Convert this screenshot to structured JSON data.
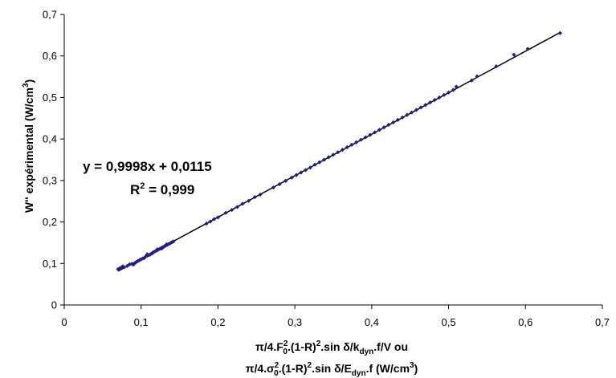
{
  "chart_data": {
    "type": "scatter",
    "xlabel_line1": {
      "pre": "π/4.F",
      "sup1": "2",
      "sub1": "0",
      "mid": ".(1-R)",
      "sup2": "2",
      "post": ".sin δ/k",
      "sub2": "dyn",
      "tail": ".f/V ou"
    },
    "xlabel_line2": {
      "pre": "π/4.σ",
      "sup1": "2",
      "sub1": "0",
      "mid": ".(1-R)",
      "sup2": "2",
      "post": ".sin δ/E",
      "sub2": "dyn",
      "tail": ".f (W/cm",
      "sup3": "3",
      "end": ")"
    },
    "ylabel": {
      "pre": "W'' expérimental (W/cm",
      "sup": "3",
      "post": ")"
    },
    "equation": "y = 0,9998x + 0,0115",
    "r2": {
      "pre": "R",
      "sup": "2",
      "post": " = 0,999"
    },
    "xlim": [
      0,
      0.7
    ],
    "ylim": [
      0,
      0.7
    ],
    "x_ticks": [
      "0",
      "0,1",
      "0,2",
      "0,3",
      "0,4",
      "0,5",
      "0,6",
      "0,7"
    ],
    "y_ticks": [
      "0",
      "0,1",
      "0,2",
      "0,3",
      "0,4",
      "0,5",
      "0,6",
      "0,7"
    ],
    "trendline": {
      "slope": 0.9998,
      "intercept": 0.0115,
      "x_range": [
        0.07,
        0.645
      ]
    },
    "marker_color": "#1f1f8c",
    "line_color": "#000000",
    "points": [
      [
        0.07,
        0.086
      ],
      [
        0.072,
        0.088
      ],
      [
        0.074,
        0.09
      ],
      [
        0.076,
        0.093
      ],
      [
        0.078,
        0.091
      ],
      [
        0.082,
        0.094
      ],
      [
        0.085,
        0.098
      ],
      [
        0.088,
        0.099
      ],
      [
        0.09,
        0.097
      ],
      [
        0.092,
        0.101
      ],
      [
        0.094,
        0.104
      ],
      [
        0.096,
        0.106
      ],
      [
        0.098,
        0.108
      ],
      [
        0.1,
        0.11
      ],
      [
        0.102,
        0.112
      ],
      [
        0.104,
        0.113
      ],
      [
        0.106,
        0.117
      ],
      [
        0.108,
        0.119
      ],
      [
        0.11,
        0.12
      ],
      [
        0.112,
        0.122
      ],
      [
        0.114,
        0.124
      ],
      [
        0.116,
        0.127
      ],
      [
        0.118,
        0.129
      ],
      [
        0.12,
        0.131
      ],
      [
        0.122,
        0.133
      ],
      [
        0.124,
        0.135
      ],
      [
        0.126,
        0.137
      ],
      [
        0.128,
        0.139
      ],
      [
        0.13,
        0.141
      ],
      [
        0.132,
        0.143
      ],
      [
        0.134,
        0.145
      ],
      [
        0.136,
        0.147
      ],
      [
        0.138,
        0.149
      ],
      [
        0.14,
        0.151
      ],
      [
        0.142,
        0.153
      ],
      [
        0.115,
        0.126
      ],
      [
        0.121,
        0.134
      ],
      [
        0.127,
        0.136
      ],
      [
        0.133,
        0.146
      ],
      [
        0.108,
        0.122
      ],
      [
        0.185,
        0.196
      ],
      [
        0.19,
        0.201
      ],
      [
        0.195,
        0.207
      ],
      [
        0.2,
        0.211
      ],
      [
        0.21,
        0.222
      ],
      [
        0.218,
        0.229
      ],
      [
        0.225,
        0.236
      ],
      [
        0.232,
        0.244
      ],
      [
        0.24,
        0.251
      ],
      [
        0.248,
        0.26
      ],
      [
        0.255,
        0.266
      ],
      [
        0.272,
        0.283
      ],
      [
        0.28,
        0.291
      ],
      [
        0.288,
        0.299
      ],
      [
        0.296,
        0.307
      ],
      [
        0.302,
        0.313
      ],
      [
        0.308,
        0.319
      ],
      [
        0.314,
        0.325
      ],
      [
        0.32,
        0.331
      ],
      [
        0.326,
        0.338
      ],
      [
        0.332,
        0.344
      ],
      [
        0.338,
        0.35
      ],
      [
        0.344,
        0.356
      ],
      [
        0.35,
        0.362
      ],
      [
        0.356,
        0.368
      ],
      [
        0.362,
        0.374
      ],
      [
        0.368,
        0.38
      ],
      [
        0.374,
        0.386
      ],
      [
        0.38,
        0.392
      ],
      [
        0.386,
        0.398
      ],
      [
        0.392,
        0.404
      ],
      [
        0.398,
        0.41
      ],
      [
        0.404,
        0.416
      ],
      [
        0.41,
        0.422
      ],
      [
        0.416,
        0.428
      ],
      [
        0.422,
        0.434
      ],
      [
        0.428,
        0.44
      ],
      [
        0.434,
        0.446
      ],
      [
        0.44,
        0.452
      ],
      [
        0.446,
        0.458
      ],
      [
        0.452,
        0.464
      ],
      [
        0.458,
        0.47
      ],
      [
        0.464,
        0.476
      ],
      [
        0.47,
        0.482
      ],
      [
        0.476,
        0.488
      ],
      [
        0.482,
        0.494
      ],
      [
        0.488,
        0.5
      ],
      [
        0.494,
        0.506
      ],
      [
        0.5,
        0.512
      ],
      [
        0.506,
        0.518
      ],
      [
        0.51,
        0.526
      ],
      [
        0.53,
        0.541
      ],
      [
        0.537,
        0.551
      ],
      [
        0.562,
        0.575
      ],
      [
        0.585,
        0.603
      ],
      [
        0.603,
        0.617
      ],
      [
        0.645,
        0.655
      ]
    ]
  }
}
